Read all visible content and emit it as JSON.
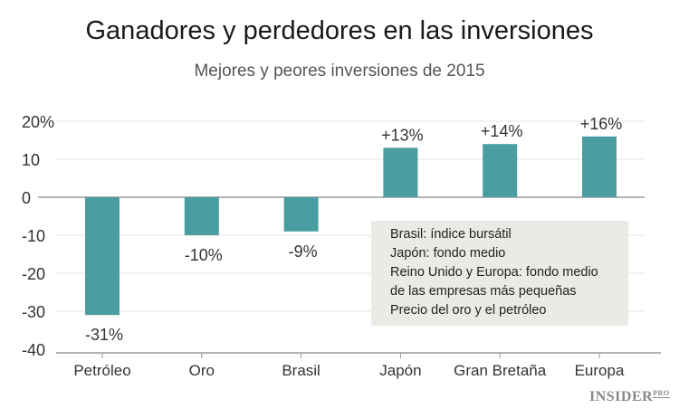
{
  "title": "Ganadores y perdedores en las inversiones",
  "subtitle": "Mejores y peores inversiones de 2015",
  "chart_data": {
    "type": "bar",
    "title": "Ganadores y perdedores en las inversiones",
    "subtitle": "Mejores y peores inversiones de 2015",
    "categories": [
      "Petróleo",
      "Oro",
      "Brasil",
      "Japón",
      "Gran Bretaña",
      "Europa"
    ],
    "values": [
      -31,
      -10,
      -9,
      13,
      14,
      16
    ],
    "data_labels": [
      "-31%",
      "-10%",
      "-9%",
      "+13%",
      "+14%",
      "+16%"
    ],
    "yticks": [
      20,
      10,
      0,
      -10,
      -20,
      -30,
      -40
    ],
    "ytick_labels": [
      "20%",
      "10",
      "0",
      "-10",
      "-20",
      "-30",
      "-40"
    ],
    "ylim": [
      -40,
      20
    ],
    "grid": true,
    "bar_color": "#4a9da0",
    "annotation": [
      "Brasil: índice bursátil",
      "Japón: fondo medio",
      "Reino Unido y Europa: fondo medio",
      "de las empresas más pequeñas",
      "Precio del oro y el petróleo"
    ]
  },
  "logo": {
    "text": "INSIDER",
    "suffix": "PRO"
  }
}
